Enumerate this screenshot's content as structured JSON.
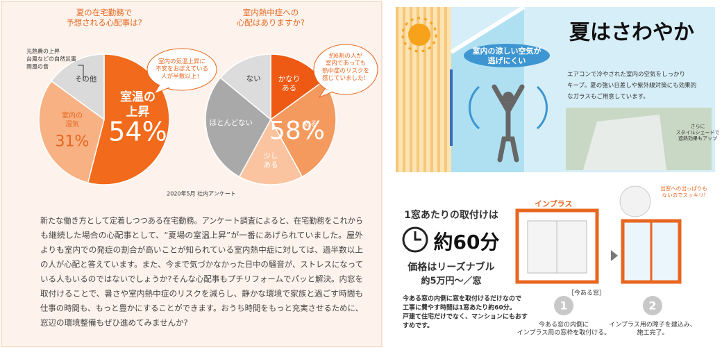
{
  "chart_data": [
    {
      "type": "pie",
      "title": "夏の在宅勤務で\n予想される心配事は?",
      "categories": [
        "室温の\n上昇",
        "室内の\n湿気",
        "その他"
      ],
      "values": [
        54,
        31,
        15
      ],
      "value_labels": [
        "54%",
        "31%",
        null
      ],
      "colors": [
        "#f26a1b",
        "#f7b183",
        "#dadada"
      ],
      "text_colors": [
        "#ffffff",
        "#e8661f",
        "#333333"
      ],
      "callout": "室内の気温上昇に\n不安をおぼえている\n人が半数以上！"
    },
    {
      "type": "pie",
      "title": "室内熱中症への\n心配はありますか?",
      "categories": [
        "かなり\nある",
        "ある",
        "少し\nある",
        "ほとんどない",
        "ない"
      ],
      "values": [
        15,
        27,
        16,
        28,
        14
      ],
      "colors": [
        "#ee5a14",
        "#f59a5f",
        "#fbc4a0",
        "#a9a9a9",
        "#dcdcdc"
      ],
      "text_colors": [
        "#ffffff",
        "#ffffff",
        "#ffffff",
        "#ffffff",
        "#333333"
      ],
      "annotation": "58%",
      "callout": "約6割の人が\n室内であっても\n熱中症のリスクを\n感じていました！"
    }
  ],
  "other_breakdown": [
    "光熱費の上昇",
    "台風などの自然災害",
    "雨風の音"
  ],
  "source": "2020年5月 社内アンケート",
  "body": [
    "新たな働き方として定着しつつある在宅勤務。アンケート調査によると、在宅勤務をこれから",
    "も継続した場合の心配事として、“夏場の室温上昇”が一番にあげられていました。屋外",
    "よりも室内での発症の割合が高いことが知られている室内熱中症に対しては、過半数以上",
    "の人が心配と答えています。また、今まで気づかなかった日中の騒音が、ストレスになって",
    "いる人もいるのではないでしょうか?そんな心配事もプチリフォームでパッと解決。内窓を",
    "取付けることで、暑さや室内熱中症のリスクを減らし、静かな環境で家族と過ごす時間も",
    "仕事の時間も、もっと豊かにすることができます。おうち時間をもっと充実させるために、",
    "窓辺の環境整備もぜひ進めてみませんか?"
  ],
  "feature": {
    "title": "夏はさわやか",
    "badge": "室内の涼しい空気が\n逃げにくい",
    "text": [
      "エアコンで冷やされた室内の空気をしっかり",
      "キープ。夏の強い日差しや紫外線対策にも効果的",
      "なガラスもご用意しています。"
    ],
    "note": "さらに\nスタイルシェードで\n遮熱効果もアップ"
  },
  "install": {
    "heading": "1窓あたりの取付けは",
    "time": "約60分",
    "price_heading": "価格はリーズナブル",
    "price": "約5万円〜／窓",
    "description": [
      "今ある窓の内側に窓を取付けるだけなので",
      "工事に費やす時間は1窓あたり約60分。",
      "戸建て住宅だけでなく、マンションにもおす",
      "すめです。"
    ],
    "brand": "インプラス",
    "current_window": "［今ある窓］",
    "bubble": "出窓への出っぱりも\nないのでスッキリ!",
    "steps": [
      {
        "number": "1",
        "text": "今ある窓の内側に\nインプラス用の窓枠を取付ける。"
      },
      {
        "number": "2",
        "text": "インプラス用の障子を建込み、\n施工完了。"
      }
    ]
  }
}
